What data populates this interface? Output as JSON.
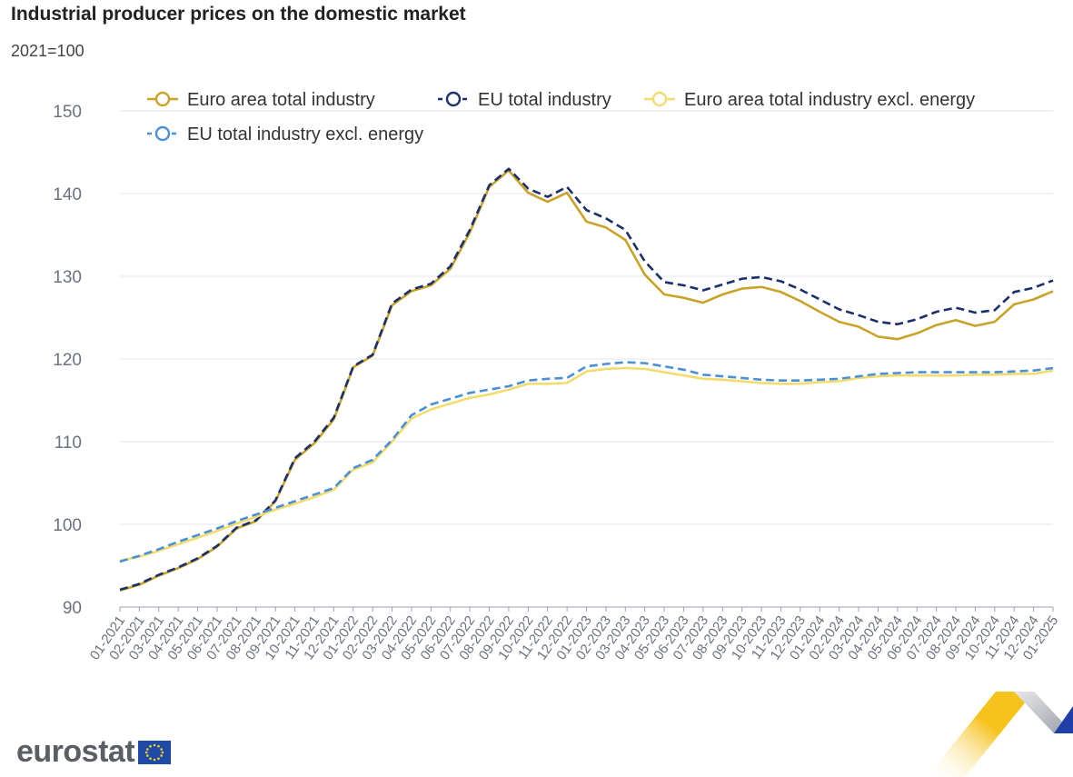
{
  "chart_data": {
    "type": "line",
    "title": "Industrial producer prices on the domestic market",
    "subtitle": "2021=100",
    "xlabel": "",
    "ylabel": "",
    "ylim": [
      90,
      150
    ],
    "yticks": [
      90,
      100,
      110,
      120,
      130,
      140,
      150
    ],
    "legend_position": "top",
    "x": [
      "01-2021",
      "02-2021",
      "03-2021",
      "04-2021",
      "05-2021",
      "06-2021",
      "07-2021",
      "08-2021",
      "09-2021",
      "10-2021",
      "11-2021",
      "12-2021",
      "01-2022",
      "02-2022",
      "03-2022",
      "04-2022",
      "05-2022",
      "06-2022",
      "07-2022",
      "08-2022",
      "09-2022",
      "10-2022",
      "11-2022",
      "12-2022",
      "01-2023",
      "02-2023",
      "03-2023",
      "04-2023",
      "05-2023",
      "06-2023",
      "07-2023",
      "08-2023",
      "09-2023",
      "10-2023",
      "11-2023",
      "12-2023",
      "01-2024",
      "02-2024",
      "03-2024",
      "04-2024",
      "05-2024",
      "06-2024",
      "07-2024",
      "08-2024",
      "09-2024",
      "10-2024",
      "11-2024",
      "12-2024",
      "01-2025"
    ],
    "series": [
      {
        "name": "Euro area total industry",
        "color": "#c9a227",
        "style": "solid",
        "values": [
          92.0,
          92.7,
          93.8,
          94.7,
          95.8,
          97.3,
          99.5,
          100.4,
          102.8,
          107.8,
          109.8,
          112.7,
          119.0,
          120.4,
          126.5,
          128.2,
          128.9,
          130.9,
          135.3,
          140.8,
          142.8,
          140.1,
          139.0,
          140.1,
          136.6,
          135.9,
          134.4,
          130.2,
          127.8,
          127.4,
          126.8,
          127.8,
          128.5,
          128.7,
          128.1,
          127.0,
          125.7,
          124.5,
          123.9,
          122.7,
          122.4,
          123.1,
          124.1,
          124.7,
          124.0,
          124.5,
          126.6,
          127.2,
          128.2
        ]
      },
      {
        "name": "EU total industry",
        "color": "#1a2f6b",
        "style": "dashed",
        "values": [
          92.1,
          92.8,
          93.9,
          94.8,
          95.9,
          97.4,
          99.6,
          100.5,
          102.9,
          108.0,
          110.0,
          112.9,
          119.1,
          120.5,
          126.7,
          128.4,
          129.1,
          131.2,
          135.6,
          141.0,
          143.0,
          140.6,
          139.6,
          140.8,
          138.0,
          137.0,
          135.6,
          131.8,
          129.3,
          128.9,
          128.3,
          129.0,
          129.7,
          129.9,
          129.4,
          128.4,
          127.2,
          126.0,
          125.3,
          124.5,
          124.2,
          124.8,
          125.7,
          126.2,
          125.6,
          125.9,
          128.1,
          128.6,
          129.5
        ]
      },
      {
        "name": "Euro area total industry excl. energy",
        "color": "#f3dc6e",
        "style": "solid",
        "values": [
          95.6,
          96.1,
          96.8,
          97.6,
          98.4,
          99.2,
          100.1,
          100.9,
          101.8,
          102.5,
          103.3,
          104.2,
          106.6,
          107.5,
          110.0,
          112.8,
          113.9,
          114.6,
          115.3,
          115.7,
          116.3,
          117.0,
          117.0,
          117.1,
          118.5,
          118.8,
          118.9,
          118.8,
          118.4,
          118.0,
          117.6,
          117.5,
          117.3,
          117.1,
          117.0,
          117.0,
          117.2,
          117.3,
          117.7,
          117.9,
          118.0,
          118.0,
          118.0,
          118.0,
          118.1,
          118.1,
          118.2,
          118.2,
          118.6
        ]
      },
      {
        "name": "EU total industry excl. energy",
        "color": "#4a90d9",
        "style": "dashed",
        "values": [
          95.5,
          96.2,
          97.0,
          97.9,
          98.7,
          99.5,
          100.4,
          101.2,
          102.0,
          102.8,
          103.6,
          104.4,
          106.8,
          107.8,
          110.2,
          113.2,
          114.5,
          115.2,
          115.9,
          116.3,
          116.7,
          117.4,
          117.6,
          117.7,
          119.1,
          119.4,
          119.6,
          119.5,
          119.1,
          118.7,
          118.1,
          117.9,
          117.7,
          117.5,
          117.4,
          117.4,
          117.5,
          117.6,
          117.9,
          118.2,
          118.3,
          118.4,
          118.4,
          118.4,
          118.4,
          118.4,
          118.5,
          118.6,
          118.9
        ]
      }
    ]
  },
  "branding": {
    "logo_text": "eurostat"
  }
}
